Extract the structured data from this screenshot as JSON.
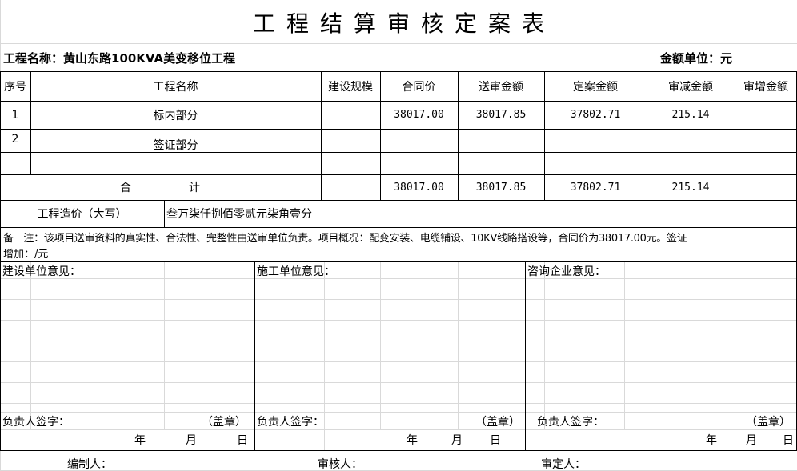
{
  "title": "工程结算审核定案表",
  "project_name": "工程名称：黄山东路100KVA美变移位工程",
  "unit": "金额单位：元",
  "headers": [
    "序号",
    "工程名称",
    "建设规模",
    "合同价",
    "送审金额",
    "定案金额",
    "审减金额",
    "审增金额"
  ],
  "rows": [
    {
      "no": "1",
      "name": "标内部分",
      "scale": "",
      "contract": "38017.00",
      "submitted": "38017.85",
      "final": "37802.71",
      "reduced": "215.14",
      "increased": ""
    },
    {
      "no": "2",
      "name": "签证部分",
      "scale": "",
      "contract": "",
      "submitted": "",
      "final": "",
      "reduced": "",
      "increased": ""
    }
  ],
  "total": {
    "label_a": "合",
    "label_b": "计",
    "contract": "38017.00",
    "submitted": "38017.85",
    "final": "37802.71",
    "reduced": "215.14"
  },
  "capital": {
    "label": "工程造价（大写）",
    "value": "叁万柒仟捌佰零贰元柒角壹分"
  },
  "note_line1": "备　注：该项目送审资料的真实性、合法性、完整性由送审单位负责。项目概况：配变安装、电缆铺设、10KV线路搭设等，合同价为38017.00元。签证",
  "note_line2": "增加：/元",
  "opinions": [
    {
      "label": "建设单位意见：",
      "sign": "负责人签字：",
      "seal": "（盖章）",
      "year": "年",
      "month": "月",
      "day": "日"
    },
    {
      "label": "施工单位意见：",
      "sign": "负责人签字：",
      "seal": "（盖章）",
      "year": "年",
      "month": "月",
      "day": "日"
    },
    {
      "label": "咨询企业意见：",
      "sign": "负责人签字：",
      "seal": "（盖章）",
      "year": "年",
      "month": "月",
      "day": "日"
    }
  ],
  "footer": {
    "compiler": "编制人：",
    "reviewer": "审核人：",
    "approver": "审定人："
  }
}
